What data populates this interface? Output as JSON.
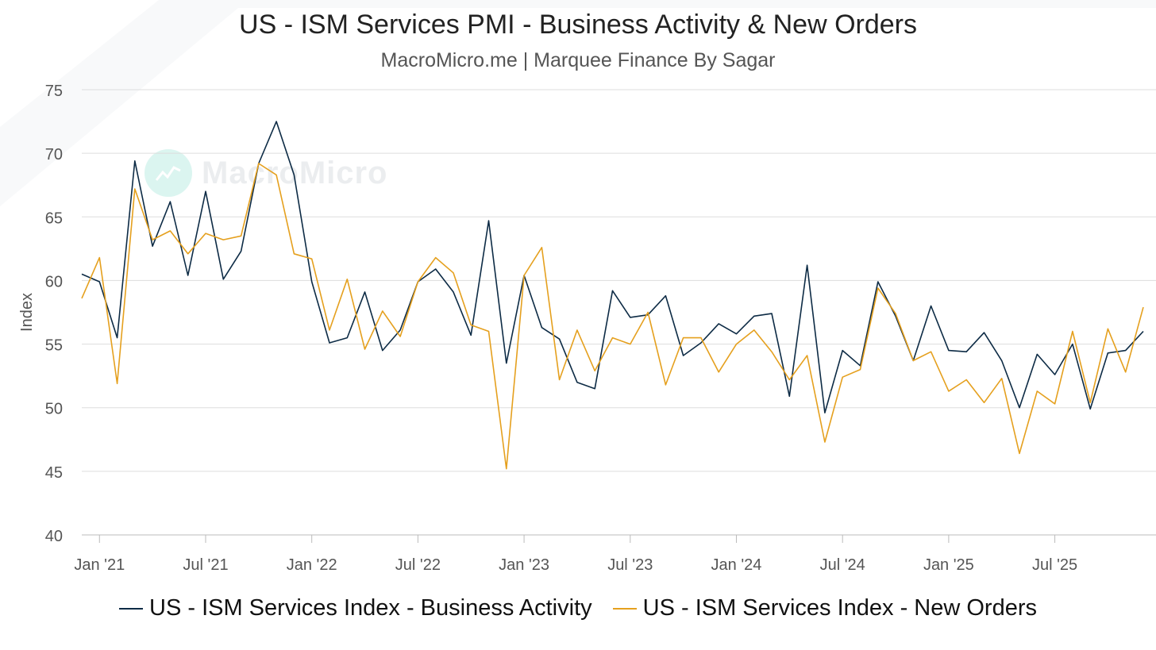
{
  "title": "US - ISM Services PMI - Business Activity & New Orders",
  "subtitle": "MacroMicro.me | Marquee Finance By Sagar",
  "watermark": "MacroMicro",
  "colors": {
    "business_activity": "#0d2b45",
    "new_orders": "#e5a01e",
    "grid": "#dddddd",
    "axis_text": "#555555"
  },
  "chart_data": {
    "type": "line",
    "title": "US - ISM Services PMI - Business Activity & New Orders",
    "xlabel": "",
    "ylabel": "Index",
    "ylim": [
      40,
      75
    ],
    "yticks": [
      40,
      45,
      50,
      55,
      60,
      65,
      70,
      75
    ],
    "x_start": "Dec 2020",
    "x_tick_labels": [
      "Jan '21",
      "Jul '21",
      "Jan '22",
      "Jul '22",
      "Jan '23",
      "Jul '23",
      "Jan '24",
      "Jul '24",
      "Jan '25",
      "Jul '25"
    ],
    "x_tick_index": [
      1,
      7,
      13,
      19,
      25,
      31,
      37,
      43,
      49,
      55
    ],
    "series": [
      {
        "name": "US - ISM Services Index - Business Activity",
        "color": "#0d2b45",
        "values": [
          60.5,
          59.9,
          55.5,
          69.4,
          62.7,
          66.2,
          60.4,
          67.0,
          60.1,
          62.3,
          69.2,
          72.5,
          68.3,
          59.9,
          55.1,
          55.5,
          59.1,
          54.5,
          56.1,
          59.9,
          60.9,
          59.1,
          55.7,
          64.7,
          53.5,
          60.4,
          56.3,
          55.4,
          52.0,
          51.5,
          59.2,
          57.1,
          57.3,
          58.8,
          54.1,
          55.1,
          56.6,
          55.8,
          57.2,
          57.4,
          50.9,
          61.2,
          49.6,
          54.5,
          53.3,
          59.9,
          57.2,
          53.7,
          58.0,
          54.5,
          54.4,
          55.9,
          53.7,
          50.0,
          54.2,
          52.6,
          55.0,
          49.9,
          54.3,
          54.5,
          56.0
        ]
      },
      {
        "name": "US - ISM Services Index - New Orders",
        "color": "#e5a01e",
        "values": [
          58.6,
          61.8,
          51.9,
          67.2,
          63.2,
          63.9,
          62.1,
          63.7,
          63.2,
          63.5,
          69.2,
          68.3,
          62.1,
          61.7,
          56.1,
          60.1,
          54.6,
          57.6,
          55.6,
          59.9,
          61.8,
          60.6,
          56.5,
          56.0,
          45.2,
          60.4,
          62.6,
          52.2,
          56.1,
          52.9,
          55.5,
          55.0,
          57.5,
          51.8,
          55.5,
          55.5,
          52.8,
          55.0,
          56.1,
          54.4,
          52.2,
          54.1,
          47.3,
          52.4,
          53.0,
          59.4,
          57.4,
          53.7,
          54.4,
          51.3,
          52.2,
          50.4,
          52.3,
          46.4,
          51.3,
          50.3,
          56.0,
          50.4,
          56.2,
          52.8,
          57.9
        ]
      }
    ]
  }
}
